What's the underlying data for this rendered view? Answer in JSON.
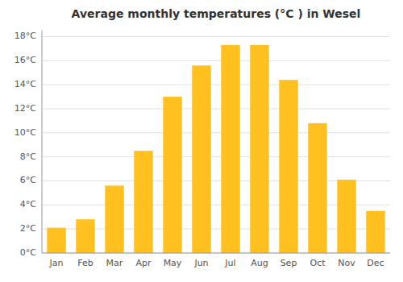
{
  "chart_data": {
    "type": "bar",
    "title": "Average monthly temperatures (°C ) in Wesel",
    "categories": [
      "Jan",
      "Feb",
      "Mar",
      "Apr",
      "May",
      "Jun",
      "Jul",
      "Aug",
      "Sep",
      "Oct",
      "Nov",
      "Dec"
    ],
    "values": [
      2.1,
      2.8,
      5.6,
      8.5,
      13.0,
      15.6,
      17.3,
      17.3,
      14.4,
      10.8,
      6.1,
      3.5
    ],
    "color": "#FFC020",
    "ylim": [
      0,
      18.5
    ],
    "yticks": [
      {
        "value": 0,
        "label": "0°C"
      },
      {
        "value": 2,
        "label": "2°C"
      },
      {
        "value": 4,
        "label": "4°C"
      },
      {
        "value": 6,
        "label": "6°C"
      },
      {
        "value": 8,
        "label": "8°C"
      },
      {
        "value": 10,
        "label": "10°C"
      },
      {
        "value": 12,
        "label": "12°C"
      },
      {
        "value": 14,
        "label": "14°C"
      },
      {
        "value": 16,
        "label": "16°C"
      },
      {
        "value": 18,
        "label": "18°C"
      }
    ],
    "grid": true
  }
}
